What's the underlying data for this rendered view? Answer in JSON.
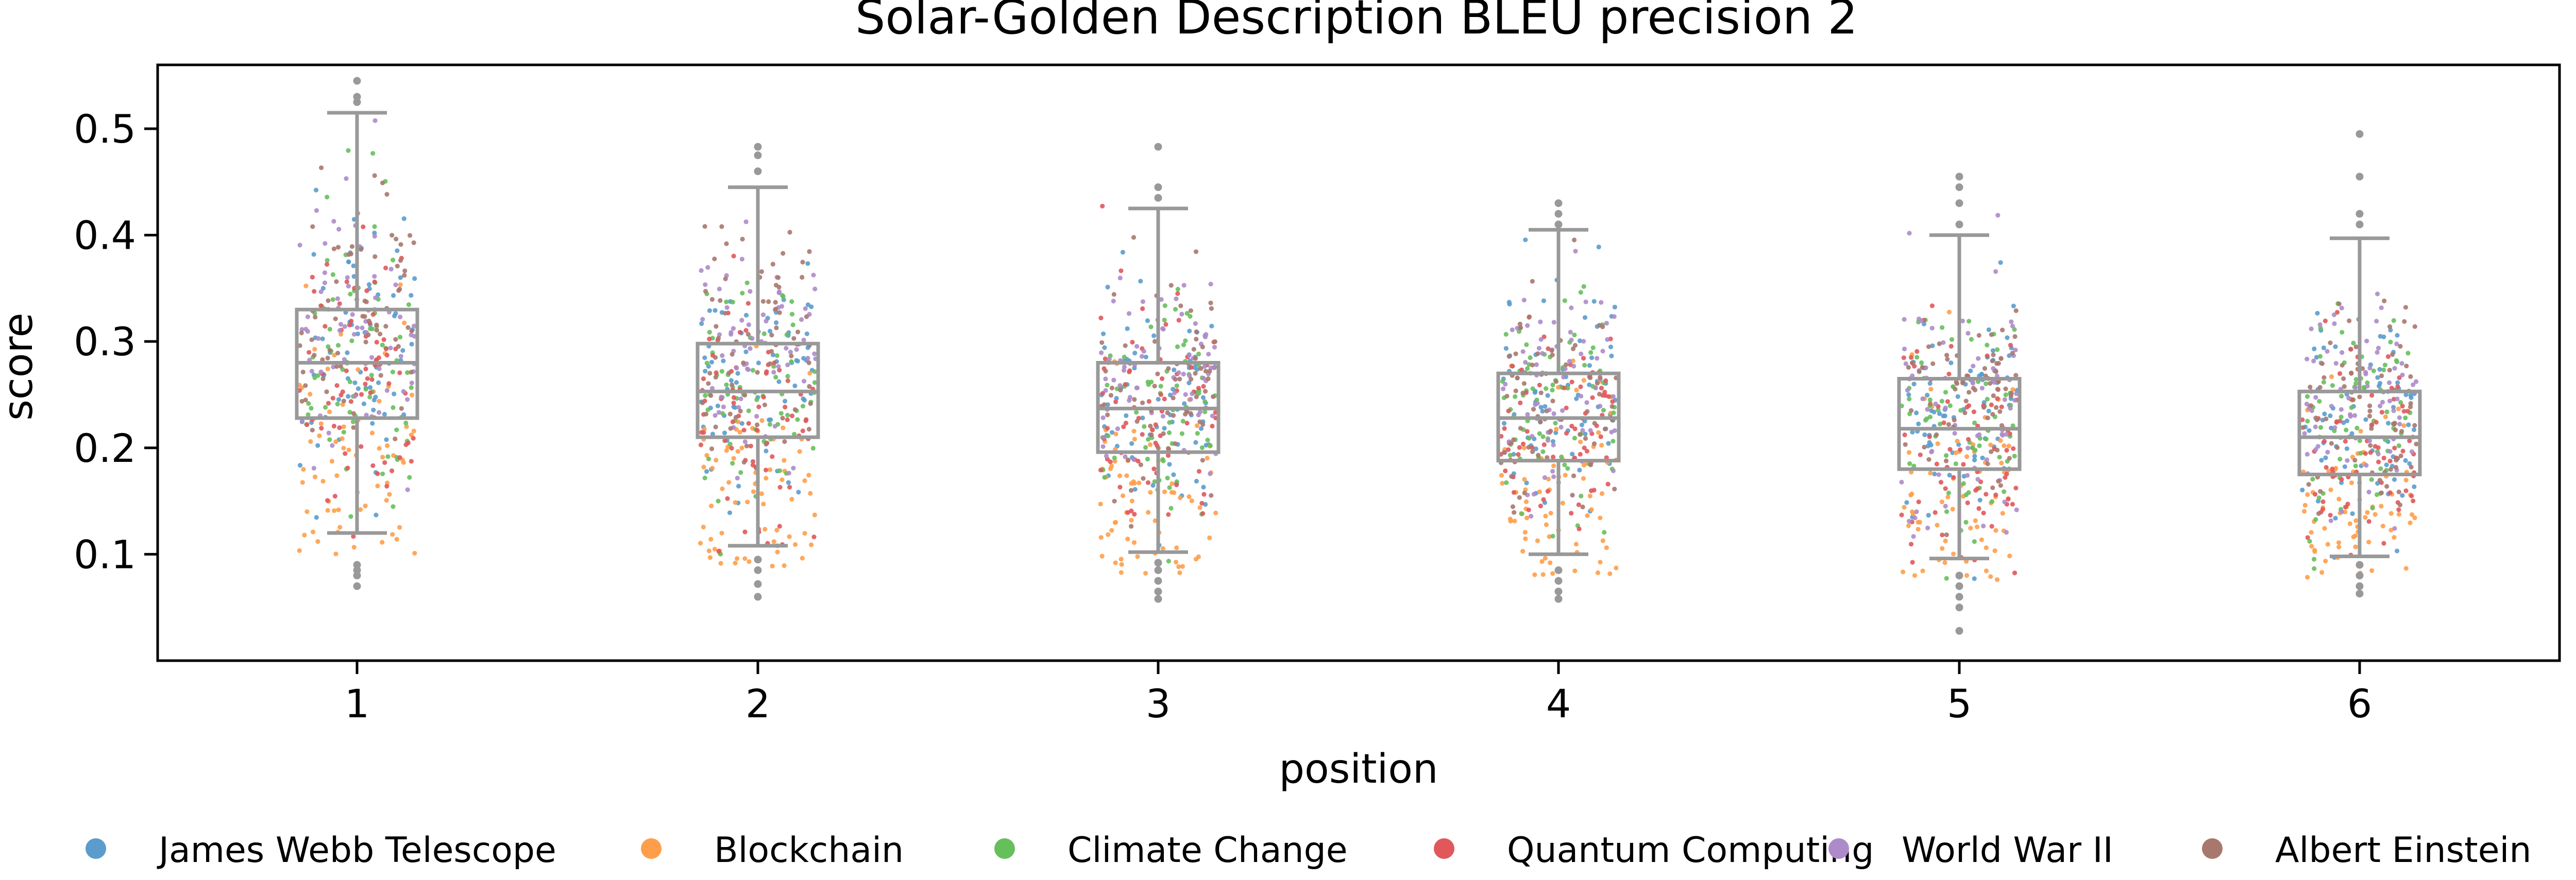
{
  "chart_data": {
    "type": "box+strip",
    "title": "Solar-Golden Description BLEU precision 2",
    "xlabel": "position",
    "ylabel": "score",
    "categories": [
      "1",
      "2",
      "3",
      "4",
      "5",
      "6"
    ],
    "ylim": [
      0.0,
      0.56
    ],
    "yticks": [
      "0.1",
      "0.2",
      "0.3",
      "0.4",
      "0.5"
    ],
    "grid": false,
    "legend_position": "bottom",
    "box_color": "#999999",
    "boxes": [
      {
        "position": "1",
        "whisker_low": 0.12,
        "q1": 0.228,
        "median": 0.28,
        "q3": 0.33,
        "whisker_high": 0.515,
        "outliers": [
          0.07,
          0.08,
          0.085,
          0.09,
          0.525,
          0.53,
          0.545
        ]
      },
      {
        "position": "2",
        "whisker_low": 0.108,
        "q1": 0.21,
        "median": 0.253,
        "q3": 0.298,
        "whisker_high": 0.445,
        "outliers": [
          0.06,
          0.072,
          0.085,
          0.095,
          0.46,
          0.475,
          0.483
        ]
      },
      {
        "position": "3",
        "whisker_low": 0.102,
        "q1": 0.196,
        "median": 0.237,
        "q3": 0.28,
        "whisker_high": 0.425,
        "outliers": [
          0.058,
          0.065,
          0.075,
          0.085,
          0.092,
          0.435,
          0.445,
          0.483
        ]
      },
      {
        "position": "4",
        "whisker_low": 0.1,
        "q1": 0.188,
        "median": 0.228,
        "q3": 0.27,
        "whisker_high": 0.405,
        "outliers": [
          0.058,
          0.065,
          0.075,
          0.085,
          0.41,
          0.42,
          0.43
        ]
      },
      {
        "position": "5",
        "whisker_low": 0.096,
        "q1": 0.18,
        "median": 0.218,
        "q3": 0.265,
        "whisker_high": 0.4,
        "outliers": [
          0.028,
          0.05,
          0.06,
          0.07,
          0.08,
          0.41,
          0.43,
          0.445,
          0.455
        ]
      },
      {
        "position": "6",
        "whisker_low": 0.098,
        "q1": 0.175,
        "median": 0.21,
        "q3": 0.253,
        "whisker_high": 0.397,
        "outliers": [
          0.063,
          0.07,
          0.08,
          0.09,
          0.41,
          0.42,
          0.455,
          0.495
        ]
      }
    ],
    "series": [
      {
        "name": "James Webb Telescope",
        "color": "#5b9ccc",
        "center_offsets": [
          0.29,
          0.27,
          0.25,
          0.245,
          0.24,
          0.235
        ]
      },
      {
        "name": "Blockchain",
        "color": "#ff9e4a",
        "center_offsets": [
          0.19,
          0.17,
          0.16,
          0.155,
          0.15,
          0.145
        ]
      },
      {
        "name": "Climate Change",
        "color": "#67bf5c",
        "center_offsets": [
          0.27,
          0.25,
          0.24,
          0.235,
          0.225,
          0.22
        ]
      },
      {
        "name": "Quantum Computing",
        "color": "#e0585b",
        "center_offsets": [
          0.27,
          0.24,
          0.23,
          0.215,
          0.205,
          0.2
        ]
      },
      {
        "name": "World War II",
        "color": "#ad8bc9",
        "center_offsets": [
          0.32,
          0.29,
          0.27,
          0.26,
          0.255,
          0.245
        ]
      },
      {
        "name": "Albert Einstein",
        "color": "#a8786e",
        "center_offsets": [
          0.33,
          0.29,
          0.26,
          0.245,
          0.24,
          0.23
        ]
      }
    ]
  }
}
